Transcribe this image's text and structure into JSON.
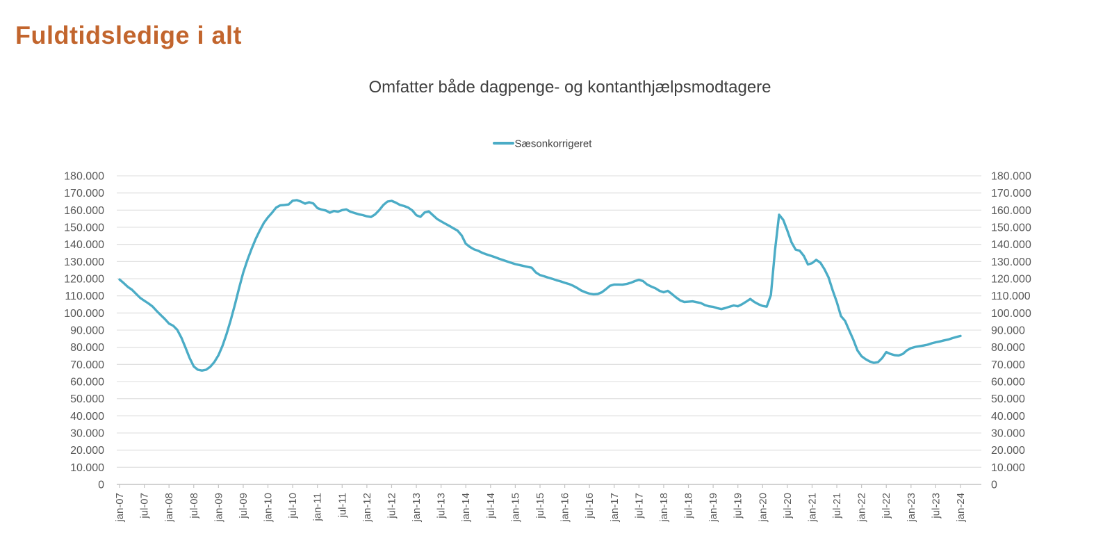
{
  "header": {
    "title": "Fuldtidsledige i alt"
  },
  "chart": {
    "subtitle": "Omfatter både dagpenge- og kontanthjælpsmodtagere",
    "legend": [
      {
        "label": "Sæsonkorrigeret",
        "color": "#4BACC6"
      }
    ]
  },
  "colors": {
    "title": "#C2652D",
    "subtitle_text": "#3F3F3F",
    "line": "#4BACC6",
    "grid": "#DCDCDC",
    "axis": "#C3C3C3",
    "tick_text": "#595959"
  },
  "chart_data": {
    "type": "line",
    "title": "Omfatter både dagpenge- og kontanthjælpsmodtagere",
    "legend_position": "top-center",
    "grid": "horizontal",
    "y_axis": {
      "min": 0,
      "max": 180000,
      "step": 10000,
      "sides": [
        "left",
        "right"
      ],
      "tick_labels": [
        "180.000",
        "170.000",
        "160.000",
        "150.000",
        "140.000",
        "130.000",
        "120.000",
        "110.000",
        "100.000",
        "90.000",
        "80.000",
        "70.000",
        "60.000",
        "50.000",
        "40.000",
        "30.000",
        "20.000",
        "10.000",
        "0"
      ]
    },
    "x_axis": {
      "start_month": "jan-07",
      "end_month": "jan-24",
      "frequency_of_points": "monthly",
      "ticks_every_months": 6,
      "tick_labels": [
        "jan-07",
        "jul-07",
        "jan-08",
        "jul-08",
        "jan-09",
        "jul-09",
        "jan-10",
        "jul-10",
        "jan-11",
        "jul-11",
        "jan-12",
        "jul-12",
        "jan-13",
        "jul-13",
        "jan-14",
        "jul-14",
        "jan-15",
        "jul-15",
        "jan-16",
        "jul-16",
        "jan-17",
        "jul-17",
        "jan-18",
        "jul-18",
        "jan-19",
        "jul-19",
        "jan-20",
        "jul-20",
        "jan-21",
        "jul-21",
        "jan-22",
        "jul-22",
        "jan-23",
        "jul-23",
        "jan-24"
      ]
    },
    "series": [
      {
        "name": "Sæsonkorrigeret",
        "color": "#4BACC6",
        "values": [
          119500,
          117500,
          115200,
          113600,
          111200,
          108800,
          107200,
          105600,
          103800,
          101200,
          98800,
          96500,
          93800,
          92600,
          90200,
          85600,
          79800,
          73800,
          68800,
          66900,
          66400,
          66900,
          68600,
          71400,
          75400,
          81000,
          88000,
          96000,
          105000,
          114500,
          123500,
          130800,
          137200,
          143000,
          148000,
          152500,
          155800,
          158500,
          161500,
          162800,
          163000,
          163300,
          165500,
          165800,
          165000,
          163800,
          164600,
          163900,
          161200,
          160300,
          159800,
          158500,
          159500,
          159100,
          160000,
          160400,
          159100,
          158300,
          157600,
          157100,
          156400,
          156000,
          157500,
          160000,
          163000,
          165000,
          165400,
          164400,
          163100,
          162400,
          161500,
          159900,
          157000,
          156100,
          158600,
          159300,
          157100,
          154900,
          153500,
          152100,
          150800,
          149400,
          148000,
          145200,
          140400,
          138500,
          137100,
          136300,
          135100,
          134200,
          133400,
          132600,
          131700,
          130900,
          130100,
          129300,
          128500,
          128000,
          127400,
          126900,
          126400,
          123600,
          122100,
          121400,
          120600,
          119900,
          119100,
          118400,
          117600,
          116900,
          115900,
          114600,
          113100,
          112100,
          111300,
          110900,
          111100,
          112100,
          113900,
          115900,
          116600,
          116600,
          116500,
          116900,
          117600,
          118600,
          119400,
          118600,
          116600,
          115400,
          114400,
          112900,
          112100,
          112900,
          111100,
          109100,
          107300,
          106400,
          106600,
          106800,
          106300,
          105800,
          104600,
          103900,
          103600,
          102800,
          102300,
          102900,
          103700,
          104400,
          103900,
          105100,
          106600,
          108200,
          106400,
          105100,
          104100,
          103700,
          110500,
          136500,
          157300,
          154300,
          148000,
          141300,
          137000,
          136300,
          133300,
          128300,
          129100,
          131000,
          129400,
          125500,
          120700,
          113200,
          106300,
          98200,
          95400,
          89800,
          84400,
          78200,
          74800,
          73000,
          71700,
          70900,
          71300,
          73700,
          77200,
          76100,
          75400,
          75200,
          76100,
          78200,
          79500,
          80200,
          80600,
          81000,
          81500,
          82300,
          82900,
          83400,
          84000,
          84500,
          85300,
          86000,
          86600
        ]
      }
    ]
  }
}
